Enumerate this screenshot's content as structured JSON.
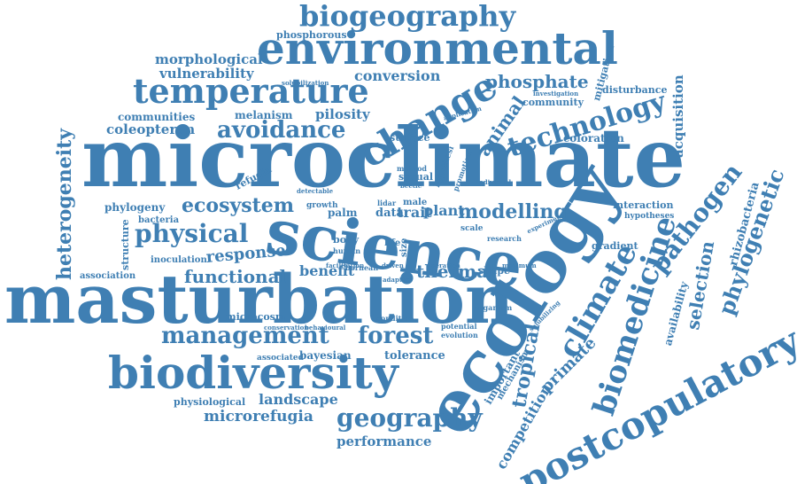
{
  "cloud": {
    "color": "#3f7fb3",
    "words": {
      "microclimate": "microclimate",
      "masturbation": "masturbation",
      "science": "science",
      "ecology": "ecology",
      "biodiversity": "biodiversity",
      "environmental": "environmental",
      "temperature": "temperature",
      "biogeography": "biogeography",
      "change": "change",
      "technology": "technology",
      "postcopulatory": "postcopulatory",
      "biomedicine": "biomedicine",
      "climate": "climate",
      "management": "management",
      "forest": "forest",
      "geography": "geography",
      "physical": "physical",
      "ecosystem": "ecosystem",
      "avoidance": "avoidance",
      "heterogeneity": "heterogeneity",
      "pathogen": "pathogen",
      "phylogenetic": "phylogenetic",
      "modelling": "modelling",
      "functional": "functional",
      "phosphate": "phosphate",
      "conversion": "conversion",
      "morphological": "morphological",
      "vulnerability": "vulnerability",
      "phosphorous": "phosphorous",
      "coleopteron": "coleopteron",
      "communities": "communities",
      "melanism": "melanism",
      "pilosity": "pilosity",
      "animal": "animal",
      "response": "response",
      "thermal": "thermal",
      "benefit": "benefit",
      "landscape": "landscape",
      "microrefugia": "microrefugia",
      "performance": "performance",
      "physiological": "physiological",
      "bayesian": "bayesian",
      "tolerance": "tolerance",
      "associated": "associated",
      "microcosm": "microcosm",
      "tropical": "tropical",
      "primate": "primate",
      "competition": "competition",
      "selection": "selection",
      "availability": "availability",
      "rhizobacteria": "rhizobacteria",
      "acquisition": "acquisition",
      "mitigation": "mitigation",
      "disturbance": "disturbance",
      "community": "community",
      "investigation": "investigation",
      "coloration": "coloration",
      "interaction": "interaction",
      "hypotheses": "hypotheses",
      "gradient": "gradient",
      "phylogeny": "phylogeny",
      "bacteria": "bacteria",
      "structure": "structure",
      "inoculation": "inoculation",
      "association": "association",
      "refugia": "refugia",
      "surface": "surface",
      "sexual": "sexual",
      "method": "method",
      "beetle": "beetle",
      "hypothesi": "hypothesi",
      "promotion": "promotion",
      "plant": "plant",
      "trait": "trait",
      "data": "data",
      "male": "male",
      "lidar": "lidar",
      "palm": "palm",
      "growth": "growth",
      "body": "body",
      "human": "human",
      "life": "life",
      "size": "size",
      "shape": "shape",
      "organism": "organism",
      "condition": "condition",
      "potential": "potential",
      "evolution": "evolution",
      "important": "important",
      "mechanism": "mechanism",
      "conservation": "conservation",
      "behavioural": "behavioural",
      "research": "research",
      "scale": "scale",
      "solubilization": "solubilization",
      "application": "application",
      "detectable": "detectable",
      "facilitation": "facilitation",
      "bornean": "bornean",
      "aeration": "aeration",
      "maximum": "maximum",
      "adaptive": "adaptive",
      "driven": "driven",
      "individual": "individual",
      "experiment": "experiment",
      "solubilizing": "solubilizing"
    }
  }
}
